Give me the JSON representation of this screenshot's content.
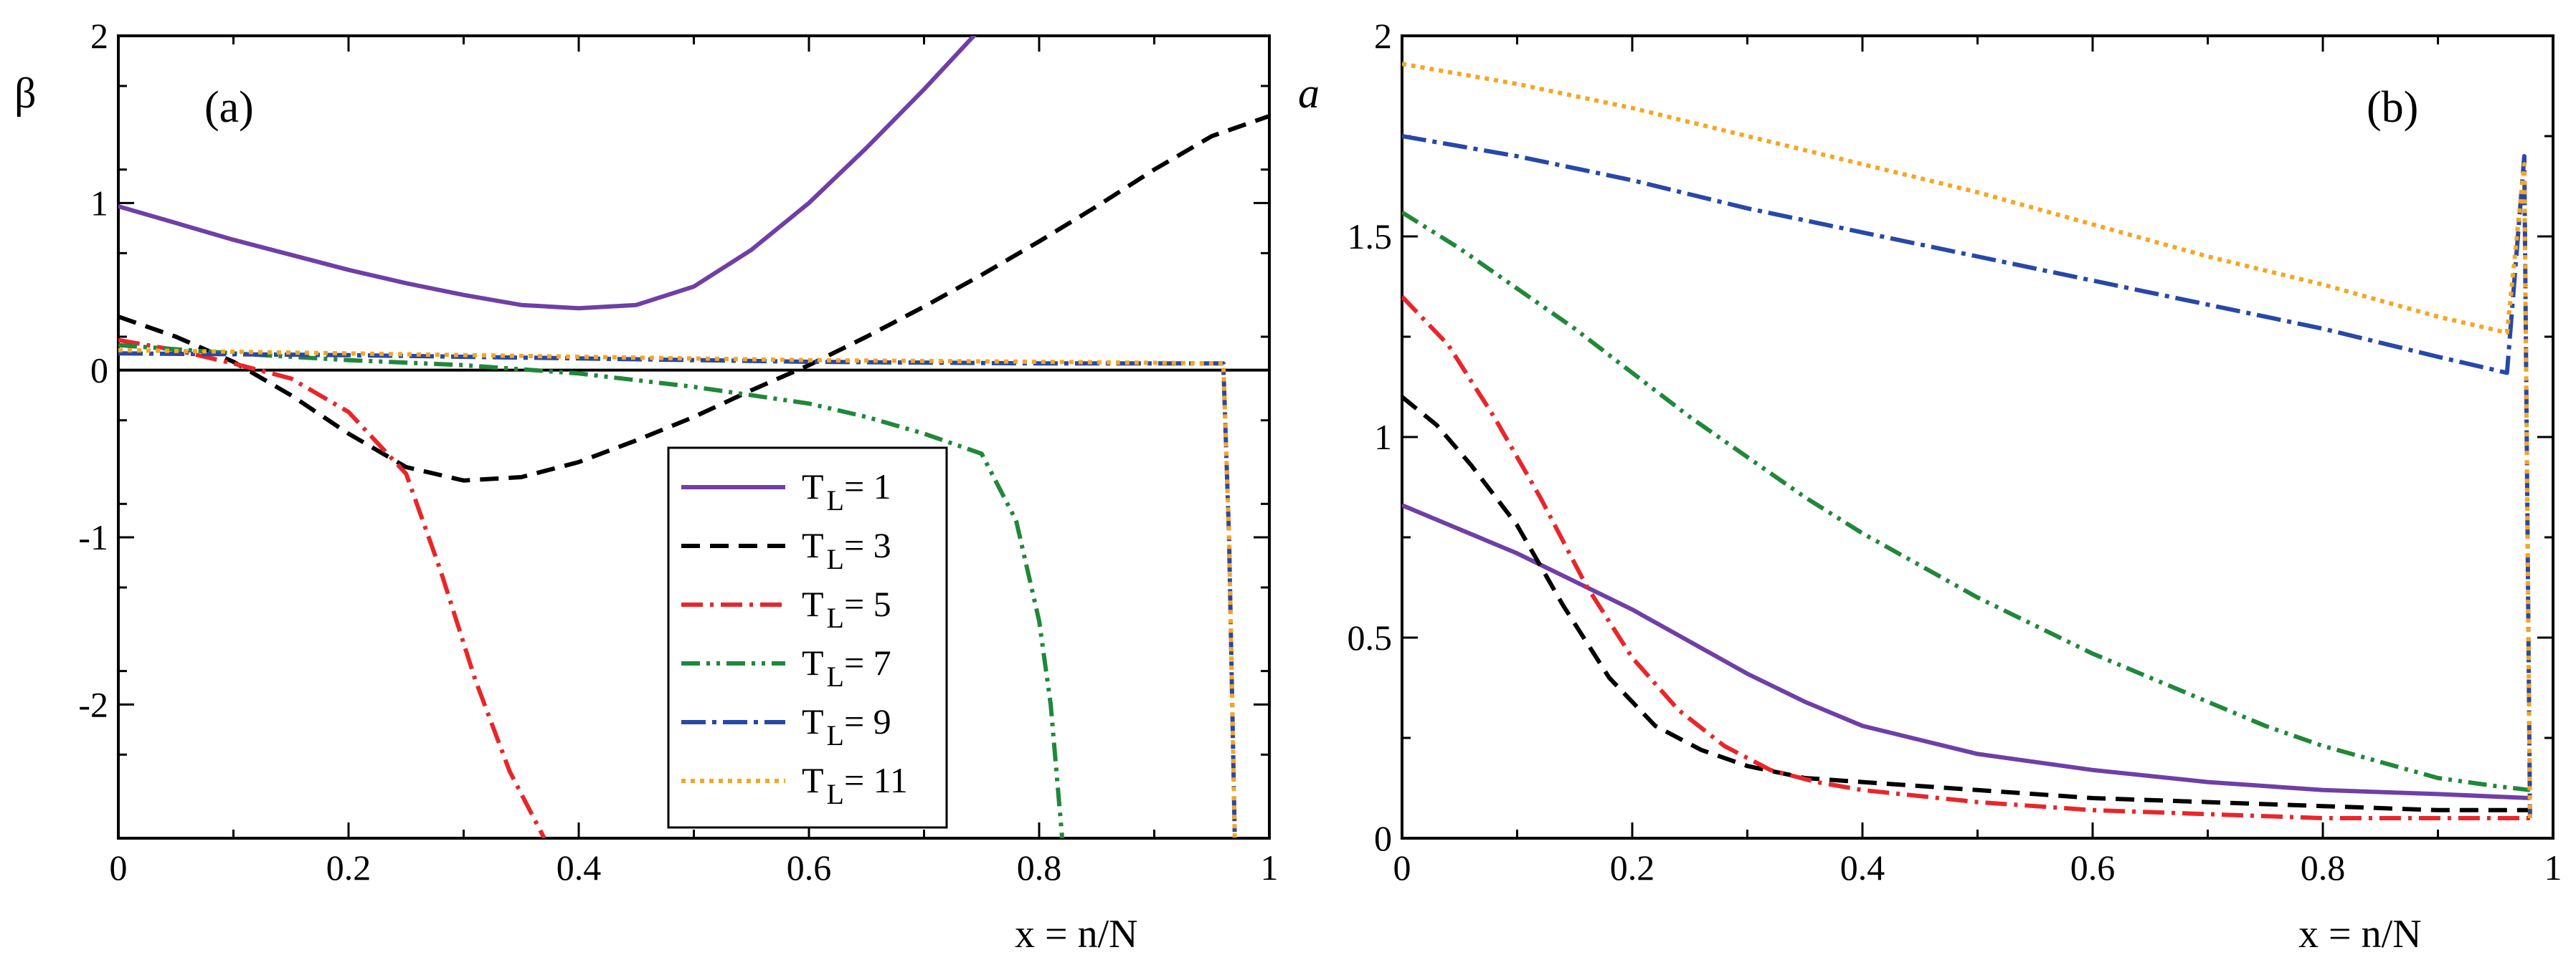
{
  "chart_data": [
    {
      "panel": "(a)",
      "type": "line",
      "ylabel": "β",
      "xlabel": "x = n/N",
      "xlim": [
        0,
        1
      ],
      "ylim": [
        -2.8,
        2
      ],
      "xticks": [
        "0",
        "0.2",
        "0.4",
        "0.6",
        "0.8",
        "1"
      ],
      "yticks": [
        "-2",
        "-1",
        "0",
        "1",
        "2"
      ],
      "reference_line_y": 0,
      "legend": {
        "placement": "lower-center-right",
        "entries": [
          {
            "main": "T",
            "sub": "L",
            "value": "= 1"
          },
          {
            "main": "T",
            "sub": "L",
            "value": "= 3"
          },
          {
            "main": "T",
            "sub": "L",
            "value": "= 5"
          },
          {
            "main": "T",
            "sub": "L",
            "value": "= 7"
          },
          {
            "main": "T",
            "sub": "L",
            "value": "= 9"
          },
          {
            "main": "T",
            "sub": "L",
            "value": "= 11"
          }
        ]
      },
      "series": [
        {
          "name": "T_L = 1",
          "x": [
            0,
            0.05,
            0.1,
            0.15,
            0.2,
            0.25,
            0.3,
            0.35,
            0.4,
            0.45,
            0.5,
            0.55,
            0.6,
            0.65,
            0.7,
            0.75
          ],
          "y": [
            0.98,
            0.88,
            0.78,
            0.69,
            0.6,
            0.52,
            0.45,
            0.39,
            0.37,
            0.39,
            0.5,
            0.72,
            1.0,
            1.33,
            1.68,
            2.05
          ]
        },
        {
          "name": "T_L = 3",
          "x": [
            0,
            0.05,
            0.1,
            0.15,
            0.2,
            0.25,
            0.3,
            0.35,
            0.4,
            0.45,
            0.5,
            0.55,
            0.6,
            0.65,
            0.7,
            0.75,
            0.8,
            0.85,
            0.9,
            0.95,
            1.0
          ],
          "y": [
            0.32,
            0.2,
            0.05,
            -0.15,
            -0.38,
            -0.58,
            -0.66,
            -0.64,
            -0.55,
            -0.42,
            -0.28,
            -0.12,
            0.03,
            0.2,
            0.38,
            0.57,
            0.77,
            0.98,
            1.2,
            1.4,
            1.52
          ]
        },
        {
          "name": "T_L = 5",
          "x": [
            0,
            0.05,
            0.1,
            0.15,
            0.2,
            0.25,
            0.28,
            0.31,
            0.34,
            0.37
          ],
          "y": [
            0.18,
            0.12,
            0.04,
            -0.05,
            -0.25,
            -0.62,
            -1.2,
            -1.85,
            -2.4,
            -2.8
          ]
        },
        {
          "name": "T_L = 7",
          "x": [
            0,
            0.1,
            0.2,
            0.3,
            0.4,
            0.5,
            0.6,
            0.65,
            0.7,
            0.75,
            0.78,
            0.8,
            0.81,
            0.815,
            0.82
          ],
          "y": [
            0.15,
            0.1,
            0.06,
            0.03,
            -0.02,
            -0.1,
            -0.2,
            -0.28,
            -0.38,
            -0.5,
            -0.9,
            -1.5,
            -2.0,
            -2.4,
            -2.8
          ]
        },
        {
          "name": "T_L = 9",
          "x": [
            0,
            0.2,
            0.4,
            0.6,
            0.8,
            0.96,
            0.965,
            0.97
          ],
          "y": [
            0.1,
            0.09,
            0.07,
            0.05,
            0.04,
            0.04,
            -1.0,
            -2.8
          ]
        },
        {
          "name": "T_L = 11",
          "x": [
            0,
            0.2,
            0.4,
            0.6,
            0.8,
            0.96,
            0.965,
            0.97
          ],
          "y": [
            0.12,
            0.1,
            0.08,
            0.06,
            0.05,
            0.04,
            -1.0,
            -2.8
          ]
        }
      ]
    },
    {
      "panel": "(b)",
      "type": "line",
      "ylabel": "a",
      "xlabel": "x = n/N",
      "xlim": [
        0,
        1
      ],
      "ylim": [
        0,
        2
      ],
      "xticks": [
        "0",
        "0.2",
        "0.4",
        "0.6",
        "0.8",
        "1"
      ],
      "yticks": [
        "0",
        "0.5",
        "1",
        "1.5",
        "2"
      ],
      "series": [
        {
          "name": "T_L = 1",
          "x": [
            0,
            0.05,
            0.1,
            0.15,
            0.2,
            0.25,
            0.3,
            0.35,
            0.4,
            0.5,
            0.6,
            0.7,
            0.8,
            0.9,
            0.98
          ],
          "y": [
            0.83,
            0.77,
            0.71,
            0.64,
            0.57,
            0.49,
            0.41,
            0.34,
            0.28,
            0.21,
            0.17,
            0.14,
            0.12,
            0.11,
            0.1
          ]
        },
        {
          "name": "T_L = 3",
          "x": [
            0,
            0.03,
            0.06,
            0.1,
            0.14,
            0.18,
            0.22,
            0.26,
            0.3,
            0.35,
            0.4,
            0.5,
            0.6,
            0.7,
            0.8,
            0.9,
            0.98
          ],
          "y": [
            1.1,
            1.03,
            0.93,
            0.78,
            0.58,
            0.4,
            0.28,
            0.22,
            0.18,
            0.15,
            0.14,
            0.12,
            0.1,
            0.09,
            0.08,
            0.07,
            0.07
          ]
        },
        {
          "name": "T_L = 5",
          "x": [
            0,
            0.04,
            0.08,
            0.12,
            0.16,
            0.2,
            0.24,
            0.28,
            0.32,
            0.36,
            0.4,
            0.5,
            0.6,
            0.7,
            0.8,
            0.9,
            0.98
          ],
          "y": [
            1.35,
            1.23,
            1.05,
            0.85,
            0.63,
            0.45,
            0.32,
            0.23,
            0.17,
            0.14,
            0.12,
            0.09,
            0.07,
            0.06,
            0.05,
            0.05,
            0.05
          ]
        },
        {
          "name": "T_L = 7",
          "x": [
            0,
            0.05,
            0.1,
            0.15,
            0.2,
            0.25,
            0.3,
            0.35,
            0.4,
            0.45,
            0.5,
            0.55,
            0.6,
            0.65,
            0.7,
            0.75,
            0.8,
            0.85,
            0.9,
            0.95,
            0.98
          ],
          "y": [
            1.56,
            1.47,
            1.37,
            1.27,
            1.16,
            1.05,
            0.95,
            0.85,
            0.76,
            0.68,
            0.6,
            0.53,
            0.46,
            0.4,
            0.34,
            0.28,
            0.23,
            0.19,
            0.15,
            0.13,
            0.12
          ]
        },
        {
          "name": "T_L = 9",
          "x": [
            0,
            0.1,
            0.2,
            0.3,
            0.4,
            0.5,
            0.6,
            0.7,
            0.8,
            0.9,
            0.96,
            0.975,
            0.98
          ],
          "y": [
            1.75,
            1.7,
            1.64,
            1.57,
            1.51,
            1.45,
            1.39,
            1.33,
            1.27,
            1.2,
            1.16,
            1.7,
            0.05
          ]
        },
        {
          "name": "T_L = 11",
          "x": [
            0,
            0.1,
            0.2,
            0.3,
            0.4,
            0.5,
            0.6,
            0.7,
            0.8,
            0.9,
            0.96,
            0.975,
            0.98
          ],
          "y": [
            1.93,
            1.88,
            1.82,
            1.75,
            1.68,
            1.61,
            1.53,
            1.45,
            1.38,
            1.3,
            1.26,
            1.68,
            0.05
          ]
        }
      ]
    }
  ]
}
